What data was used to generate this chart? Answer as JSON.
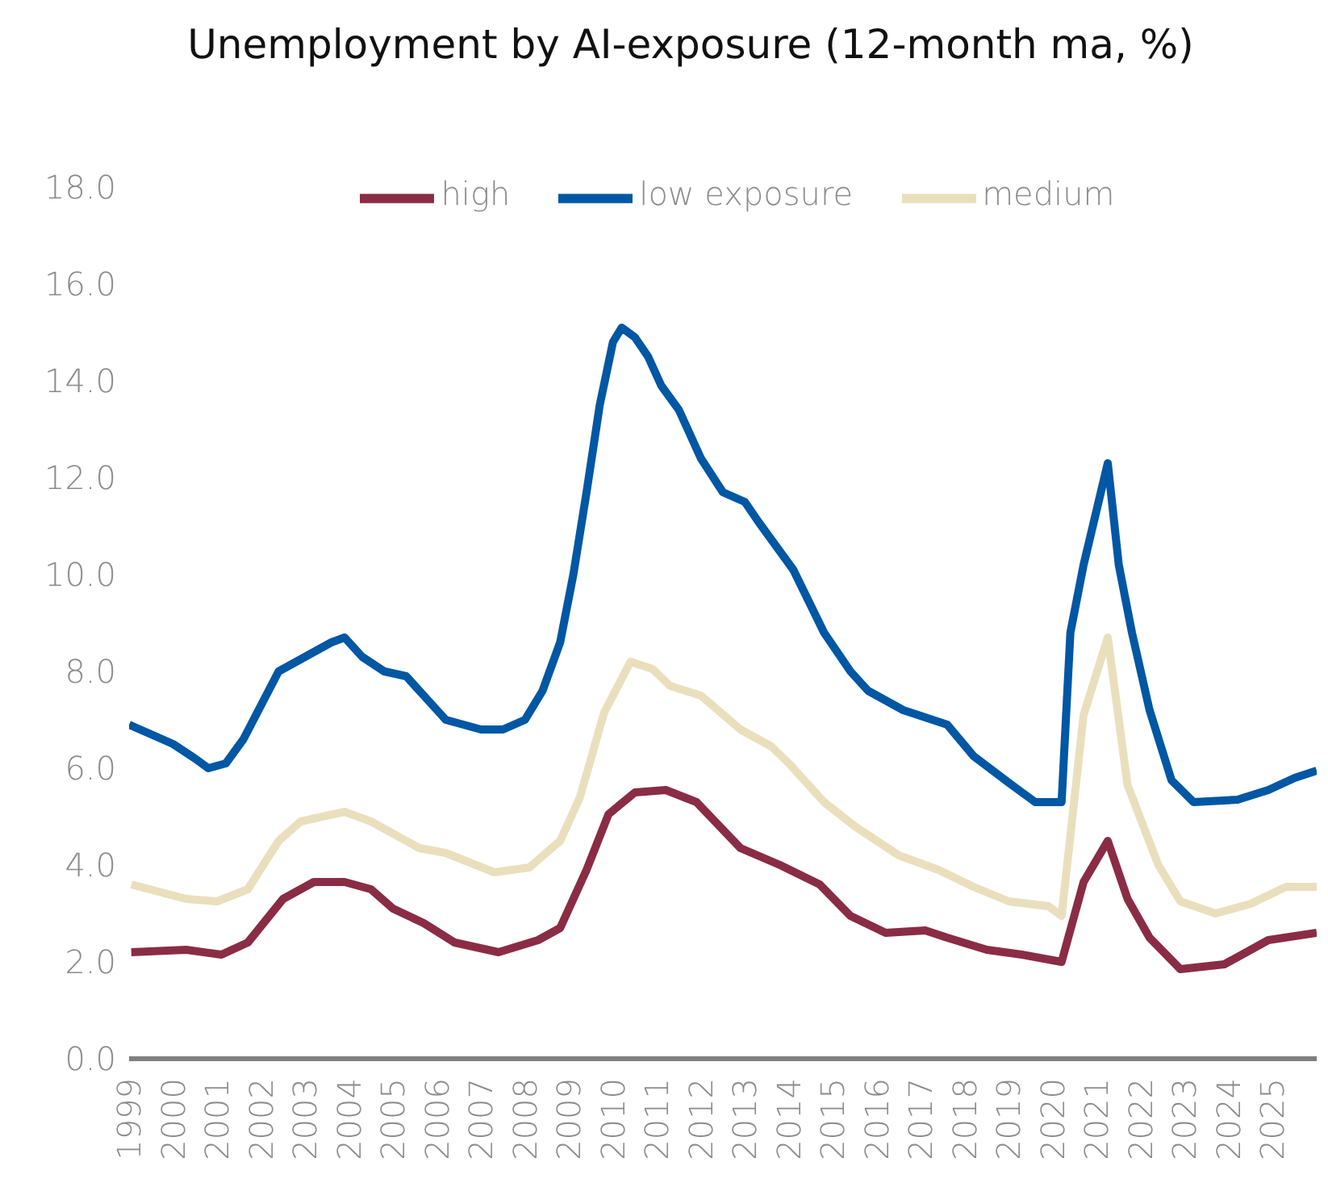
{
  "chart_data": {
    "type": "line",
    "title": "Unemployment by AI-exposure (12-month ma, %)",
    "xlim": [
      1999,
      2026
    ],
    "xticks": [
      1999,
      2000,
      2001,
      2002,
      2003,
      2004,
      2005,
      2006,
      2007,
      2008,
      2009,
      2010,
      2011,
      2012,
      2013,
      2014,
      2015,
      2016,
      2017,
      2018,
      2019,
      2020,
      2021,
      2022,
      2023,
      2024,
      2025
    ],
    "ylim": [
      0,
      18
    ],
    "yticks": [
      {
        "value": 0,
        "label": "0.0"
      },
      {
        "value": 2,
        "label": "2.0"
      },
      {
        "value": 4,
        "label": "4.0"
      },
      {
        "value": 6,
        "label": "6.0"
      },
      {
        "value": 8,
        "label": "8.0"
      },
      {
        "value": 10,
        "label": "10.0"
      },
      {
        "value": 12,
        "label": "12.0"
      },
      {
        "value": 14,
        "label": "14.0"
      },
      {
        "value": 16,
        "label": "16.0"
      },
      {
        "value": 18,
        "label": "18.0"
      }
    ],
    "legend": "top",
    "marker": "none",
    "line_style": "solid",
    "series": [
      {
        "name": "low exposure",
        "color": "#0057a4",
        "x": [
          1999.0,
          1999.5,
          2000.0,
          2000.5,
          2000.8,
          2001.2,
          2001.6,
          2002.0,
          2002.4,
          2002.8,
          2003.2,
          2003.6,
          2003.9,
          2004.3,
          2004.8,
          2005.3,
          2005.8,
          2006.2,
          2006.6,
          2007.0,
          2007.5,
          2008.0,
          2008.4,
          2008.8,
          2009.1,
          2009.4,
          2009.7,
          2010.0,
          2010.2,
          2010.5,
          2010.8,
          2011.1,
          2011.5,
          2012.0,
          2012.5,
          2013.0,
          2013.3,
          2013.7,
          2014.1,
          2014.8,
          2015.4,
          2015.8,
          2016.6,
          2017.6,
          2018.2,
          2019.0,
          2019.6,
          2020.2,
          2020.4,
          2020.7,
          2021.25,
          2021.5,
          2021.8,
          2022.2,
          2022.7,
          2023.2,
          2024.2,
          2024.9,
          2025.5,
          2026.0
        ],
        "values": [
          6.9,
          6.7,
          6.5,
          6.2,
          6.0,
          6.1,
          6.6,
          7.3,
          8.0,
          8.2,
          8.4,
          8.6,
          8.7,
          8.3,
          8.0,
          7.9,
          7.4,
          7.0,
          6.9,
          6.8,
          6.8,
          7.0,
          7.6,
          8.6,
          10.0,
          11.7,
          13.5,
          14.8,
          15.1,
          14.9,
          14.5,
          13.9,
          13.4,
          12.4,
          11.7,
          11.5,
          11.1,
          10.6,
          10.1,
          8.8,
          8.0,
          7.6,
          7.2,
          6.9,
          6.25,
          5.7,
          5.3,
          5.3,
          8.8,
          10.2,
          12.3,
          10.2,
          8.8,
          7.2,
          5.75,
          5.3,
          5.35,
          5.55,
          5.8,
          5.95
        ]
      },
      {
        "name": "medium",
        "color": "#eadfbd",
        "x": [
          1999.05,
          2000.3,
          2001.0,
          2001.7,
          2002.4,
          2002.9,
          2003.9,
          2004.5,
          2005.6,
          2006.2,
          2007.3,
          2008.1,
          2008.8,
          2009.25,
          2009.8,
          2010.4,
          2010.9,
          2011.3,
          2012.0,
          2012.9,
          2013.6,
          2014.0,
          2014.8,
          2015.5,
          2016.5,
          2017.4,
          2018.2,
          2019.0,
          2019.9,
          2020.2,
          2020.7,
          2021.25,
          2021.7,
          2022.4,
          2022.9,
          2023.7,
          2024.5,
          2025.3,
          2026.0
        ],
        "values": [
          3.6,
          3.3,
          3.25,
          3.5,
          4.5,
          4.9,
          5.1,
          4.9,
          4.35,
          4.25,
          3.85,
          3.95,
          4.5,
          5.4,
          7.15,
          8.2,
          8.05,
          7.7,
          7.5,
          6.8,
          6.45,
          6.1,
          5.3,
          4.8,
          4.2,
          3.9,
          3.55,
          3.25,
          3.15,
          2.95,
          7.1,
          8.7,
          5.65,
          4.0,
          3.25,
          3.0,
          3.2,
          3.55,
          3.55
        ]
      },
      {
        "name": "high",
        "color": "#8a2c45",
        "x": [
          1999.05,
          2000.3,
          2001.1,
          2001.7,
          2002.5,
          2003.2,
          2003.9,
          2004.5,
          2005.0,
          2005.7,
          2006.4,
          2007.4,
          2008.3,
          2008.8,
          2009.4,
          2009.9,
          2010.5,
          2011.2,
          2011.9,
          2012.9,
          2013.8,
          2014.7,
          2015.4,
          2016.2,
          2017.1,
          2017.6,
          2018.5,
          2019.3,
          2020.2,
          2020.7,
          2021.25,
          2021.7,
          2022.2,
          2022.9,
          2023.9,
          2024.9,
          2026.0
        ],
        "values": [
          2.2,
          2.25,
          2.15,
          2.4,
          3.3,
          3.65,
          3.65,
          3.5,
          3.1,
          2.8,
          2.4,
          2.2,
          2.45,
          2.7,
          3.9,
          5.05,
          5.5,
          5.55,
          5.3,
          4.35,
          4.0,
          3.6,
          2.95,
          2.6,
          2.65,
          2.5,
          2.25,
          2.15,
          2.0,
          3.65,
          4.5,
          3.3,
          2.5,
          1.85,
          1.95,
          2.45,
          2.6
        ]
      }
    ]
  }
}
